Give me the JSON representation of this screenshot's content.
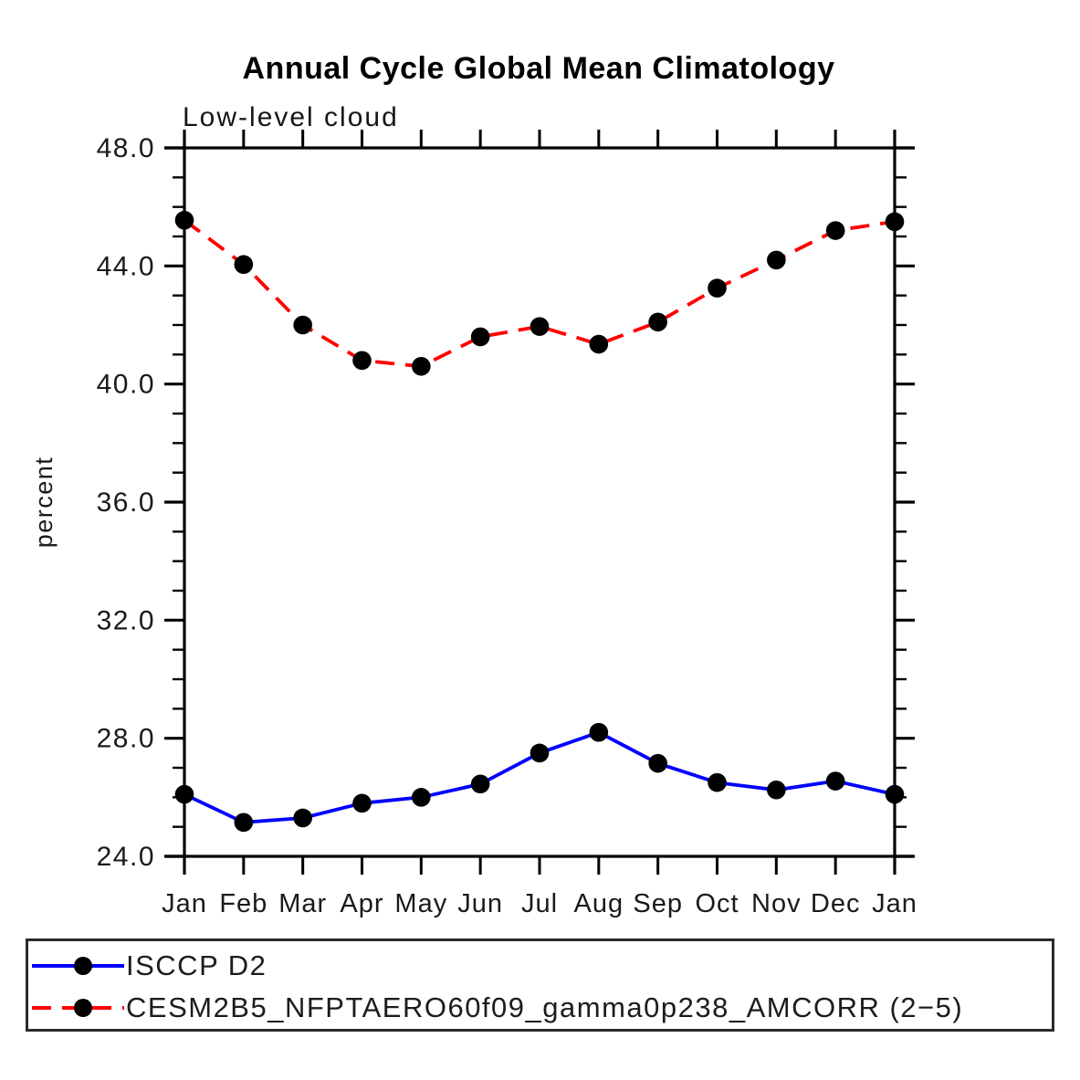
{
  "chart_data": {
    "type": "line",
    "title": "Annual Cycle Global Mean Climatology",
    "subtitle": "Low-level cloud",
    "xlabel": "",
    "ylabel": "percent",
    "categories": [
      "Jan",
      "Feb",
      "Mar",
      "Apr",
      "May",
      "Jun",
      "Jul",
      "Aug",
      "Sep",
      "Oct",
      "Nov",
      "Dec",
      "Jan"
    ],
    "ylim": [
      24.0,
      48.0
    ],
    "y_major_ticks": [
      24.0,
      28.0,
      32.0,
      36.0,
      40.0,
      44.0,
      48.0
    ],
    "y_tick_labels": [
      "24.0",
      "28.0",
      "32.0",
      "36.0",
      "40.0",
      "44.0",
      "48.0"
    ],
    "y_minor_step": 1.0,
    "grid": false,
    "legend_position": "bottom-left-box",
    "colors": {
      "axis": "#000000",
      "marker": "#000000",
      "series_blue": "#0000ff",
      "series_red": "#ff0000"
    },
    "series": [
      {
        "name": "ISCCP D2",
        "color": "#0000ff",
        "line_style": "solid",
        "marker": "filled-circle",
        "marker_color": "#000000",
        "values": [
          26.1,
          25.15,
          25.3,
          25.8,
          26.0,
          26.45,
          27.5,
          28.2,
          27.15,
          26.5,
          26.25,
          26.55,
          26.1
        ]
      },
      {
        "name": "CESM2B5_NFPTAERO60f09_gamma0p238_AMCORR (2−5)",
        "color": "#ff0000",
        "line_style": "dashed",
        "marker": "filled-circle",
        "marker_color": "#000000",
        "values": [
          45.55,
          44.05,
          42.0,
          40.8,
          40.6,
          41.6,
          41.95,
          41.35,
          42.1,
          43.25,
          44.2,
          45.2,
          45.5
        ]
      }
    ]
  }
}
